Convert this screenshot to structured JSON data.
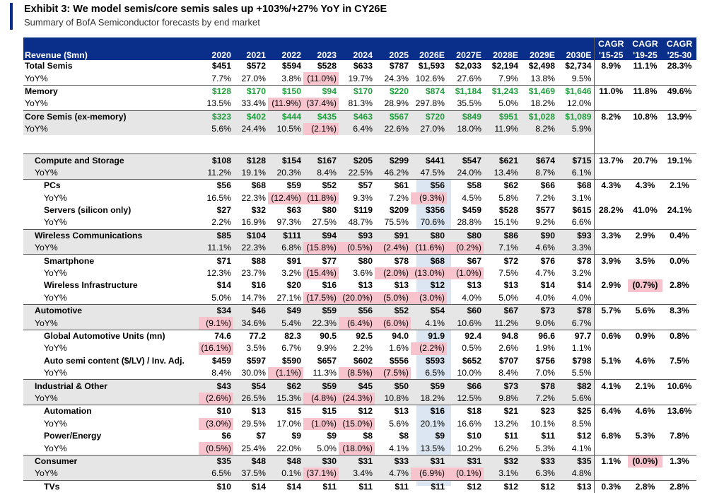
{
  "exhibit": {
    "title": "Exhibit 3: We model semis/core semis sales up +103%/+27% YoY in CY26E",
    "subtitle": "Summary of BofA Semiconductor forecasts by end market"
  },
  "colors": {
    "header_bg": "#0a2f8a",
    "negative_highlight": "#f7c3cc",
    "green_text": "#1e9e3c",
    "segment_gray": "#e6e6e6",
    "forecast_2026_band": "#dce6f2"
  },
  "header": {
    "label": "Revenue ($mn)",
    "years": [
      "2020",
      "2021",
      "2022",
      "2023",
      "2024",
      "2025",
      "2026E",
      "2027E",
      "2028E",
      "2029E",
      "2030E"
    ],
    "cagr_top": [
      "CAGR",
      "CAGR",
      "CAGR"
    ],
    "cagr_bottom": [
      "'15-25",
      "'19-25",
      "'25-30"
    ]
  },
  "rows": [
    {
      "label": "Total Semis",
      "type": "total",
      "values": [
        "$451",
        "$572",
        "$594",
        "$528",
        "$633",
        "$787",
        "$1,593",
        "$2,033",
        "$2,194",
        "$2,498",
        "$2,734"
      ],
      "cagr": [
        "8.9%",
        "11.1%",
        "28.3%"
      ]
    },
    {
      "label": "YoY%",
      "type": "yoy-top",
      "values": [
        "7.7%",
        "27.0%",
        "3.8%",
        "(11.0%)",
        "19.7%",
        "24.3%",
        "102.6%",
        "27.6%",
        "7.9%",
        "13.8%",
        "9.5%"
      ],
      "cagr": [
        "",
        "",
        ""
      ]
    },
    {
      "label": "Memory",
      "type": "total",
      "green": true,
      "values": [
        "$128",
        "$170",
        "$150",
        "$94",
        "$170",
        "$220",
        "$874",
        "$1,184",
        "$1,243",
        "$1,469",
        "$1,646"
      ],
      "cagr": [
        "11.0%",
        "11.8%",
        "49.6%"
      ]
    },
    {
      "label": "YoY%",
      "type": "yoy-top",
      "values": [
        "13.5%",
        "33.4%",
        "(11.9%)",
        "(37.4%)",
        "81.3%",
        "28.9%",
        "297.8%",
        "35.5%",
        "5.0%",
        "18.2%",
        "12.0%"
      ],
      "cagr": [
        "",
        "",
        ""
      ]
    },
    {
      "label": "Core Semis (ex-memory)",
      "type": "total-gray",
      "green": true,
      "values": [
        "$323",
        "$402",
        "$444",
        "$435",
        "$463",
        "$567",
        "$720",
        "$849",
        "$951",
        "$1,028",
        "$1,089"
      ],
      "cagr": [
        "8.2%",
        "10.8%",
        "13.9%"
      ]
    },
    {
      "label": "YoY%",
      "type": "yoy-gray",
      "values": [
        "5.6%",
        "24.4%",
        "10.5%",
        "(2.1%)",
        "6.4%",
        "22.6%",
        "27.0%",
        "18.0%",
        "11.9%",
        "8.2%",
        "5.9%"
      ],
      "cagr": [
        "",
        "",
        ""
      ]
    },
    {
      "label": "Compute and Storage",
      "type": "segment",
      "values": [
        "$108",
        "$128",
        "$154",
        "$167",
        "$205",
        "$299",
        "$441",
        "$547",
        "$621",
        "$674",
        "$715"
      ],
      "cagr": [
        "13.7%",
        "20.7%",
        "19.1%"
      ]
    },
    {
      "label": "YoY%",
      "type": "segment-yoy",
      "values": [
        "11.2%",
        "19.1%",
        "20.3%",
        "8.4%",
        "22.5%",
        "46.2%",
        "47.5%",
        "24.0%",
        "13.4%",
        "8.7%",
        "6.1%"
      ],
      "cagr": [
        "",
        "",
        ""
      ]
    },
    {
      "label": "PCs",
      "type": "sub",
      "values": [
        "$56",
        "$68",
        "$59",
        "$52",
        "$57",
        "$61",
        "$56",
        "$58",
        "$62",
        "$66",
        "$68"
      ],
      "cagr": [
        "4.3%",
        "4.3%",
        "2.1%"
      ]
    },
    {
      "label": "YoY%",
      "type": "sub-yoy",
      "values": [
        "16.5%",
        "22.3%",
        "(12.4%)",
        "(11.8%)",
        "9.3%",
        "7.2%",
        "(9.3%)",
        "4.5%",
        "5.8%",
        "7.2%",
        "3.1%"
      ],
      "cagr": [
        "",
        "",
        ""
      ]
    },
    {
      "label": "Servers (silicon only)",
      "type": "sub",
      "values": [
        "$27",
        "$32",
        "$63",
        "$80",
        "$119",
        "$209",
        "$356",
        "$459",
        "$528",
        "$577",
        "$615"
      ],
      "cagr": [
        "28.2%",
        "41.0%",
        "24.1%"
      ]
    },
    {
      "label": "YoY%",
      "type": "sub-yoy",
      "values": [
        "2.2%",
        "16.9%",
        "97.3%",
        "27.5%",
        "48.7%",
        "75.5%",
        "70.6%",
        "28.8%",
        "15.1%",
        "9.2%",
        "6.6%"
      ],
      "cagr": [
        "",
        "",
        ""
      ]
    },
    {
      "label": "Wireless Communications",
      "type": "segment",
      "values": [
        "$85",
        "$104",
        "$111",
        "$94",
        "$93",
        "$91",
        "$80",
        "$80",
        "$86",
        "$90",
        "$93"
      ],
      "cagr": [
        "3.3%",
        "2.9%",
        "0.4%"
      ]
    },
    {
      "label": "YoY%",
      "type": "segment-yoy",
      "values": [
        "11.1%",
        "22.3%",
        "6.8%",
        "(15.8%)",
        "(0.5%)",
        "(2.4%)",
        "(11.6%)",
        "(0.2%)",
        "7.1%",
        "4.6%",
        "3.3%"
      ],
      "cagr": [
        "",
        "",
        ""
      ]
    },
    {
      "label": "Smartphone",
      "type": "sub",
      "values": [
        "$71",
        "$88",
        "$91",
        "$77",
        "$80",
        "$78",
        "$68",
        "$67",
        "$72",
        "$76",
        "$78"
      ],
      "cagr": [
        "3.9%",
        "3.5%",
        "0.0%"
      ]
    },
    {
      "label": "YoY%",
      "type": "sub-yoy",
      "values": [
        "12.3%",
        "23.7%",
        "3.2%",
        "(15.4%)",
        "3.6%",
        "(2.0%)",
        "(13.0%)",
        "(1.0%)",
        "7.5%",
        "4.7%",
        "3.2%"
      ],
      "cagr": [
        "",
        "",
        ""
      ]
    },
    {
      "label": "Wireless Infrastructure",
      "type": "sub",
      "values": [
        "$14",
        "$16",
        "$20",
        "$16",
        "$13",
        "$13",
        "$12",
        "$13",
        "$13",
        "$14",
        "$14"
      ],
      "cagr": [
        "2.9%",
        "(0.7%)",
        "2.8%"
      ]
    },
    {
      "label": "YoY%",
      "type": "sub-yoy",
      "values": [
        "5.0%",
        "14.7%",
        "27.1%",
        "(17.5%)",
        "(20.0%)",
        "(5.0%)",
        "(3.0%)",
        "4.0%",
        "5.0%",
        "4.0%",
        "4.0%"
      ],
      "cagr": [
        "",
        "",
        ""
      ]
    },
    {
      "label": "Automotive",
      "type": "segment",
      "values": [
        "$34",
        "$46",
        "$49",
        "$59",
        "$56",
        "$52",
        "$54",
        "$60",
        "$67",
        "$73",
        "$78"
      ],
      "cagr": [
        "5.7%",
        "5.6%",
        "8.3%"
      ]
    },
    {
      "label": "YoY%",
      "type": "segment-yoy",
      "values": [
        "(9.1%)",
        "34.6%",
        "5.4%",
        "22.3%",
        "(6.4%)",
        "(6.0%)",
        "4.1%",
        "10.6%",
        "11.2%",
        "9.0%",
        "6.7%"
      ],
      "cagr": [
        "",
        "",
        ""
      ]
    },
    {
      "label": "Global Automotive Units (mn)",
      "type": "sub",
      "values": [
        "74.6",
        "77.2",
        "82.3",
        "90.5",
        "92.5",
        "94.0",
        "91.9",
        "92.4",
        "94.8",
        "96.6",
        "97.7"
      ],
      "cagr": [
        "0.6%",
        "0.9%",
        "0.8%"
      ]
    },
    {
      "label": "YoY%",
      "type": "sub-yoy",
      "values": [
        "(16.1%)",
        "3.5%",
        "6.7%",
        "9.9%",
        "2.2%",
        "1.6%",
        "(2.2%)",
        "0.5%",
        "2.6%",
        "1.9%",
        "1.1%"
      ],
      "cagr": [
        "",
        "",
        ""
      ]
    },
    {
      "label": "Auto semi content ($/LV) / Inv. Adj.",
      "type": "sub",
      "values": [
        "$459",
        "$597",
        "$590",
        "$657",
        "$602",
        "$556",
        "$593",
        "$652",
        "$707",
        "$756",
        "$798"
      ],
      "cagr": [
        "5.1%",
        "4.6%",
        "7.5%"
      ]
    },
    {
      "label": "YoY%",
      "type": "sub-yoy",
      "values": [
        "8.4%",
        "30.0%",
        "(1.1%)",
        "11.3%",
        "(8.5%)",
        "(7.5%)",
        "6.5%",
        "10.0%",
        "8.4%",
        "7.0%",
        "5.5%"
      ],
      "cagr": [
        "",
        "",
        ""
      ]
    },
    {
      "label": "Industrial & Other",
      "type": "segment",
      "values": [
        "$43",
        "$54",
        "$62",
        "$59",
        "$45",
        "$50",
        "$59",
        "$66",
        "$73",
        "$78",
        "$82"
      ],
      "cagr": [
        "4.1%",
        "2.1%",
        "10.6%"
      ]
    },
    {
      "label": "YoY%",
      "type": "segment-yoy",
      "values": [
        "(2.6%)",
        "26.5%",
        "15.3%",
        "(4.8%)",
        "(24.3%)",
        "10.8%",
        "18.2%",
        "12.5%",
        "9.8%",
        "7.2%",
        "5.6%"
      ],
      "cagr": [
        "",
        "",
        ""
      ]
    },
    {
      "label": "Automation",
      "type": "sub",
      "values": [
        "$10",
        "$13",
        "$15",
        "$15",
        "$12",
        "$13",
        "$16",
        "$18",
        "$21",
        "$23",
        "$25"
      ],
      "cagr": [
        "6.4%",
        "4.6%",
        "13.6%"
      ]
    },
    {
      "label": "YoY%",
      "type": "sub-yoy",
      "values": [
        "(3.0%)",
        "29.5%",
        "17.0%",
        "(1.0%)",
        "(15.0%)",
        "5.6%",
        "20.1%",
        "16.6%",
        "13.2%",
        "10.1%",
        "8.5%"
      ],
      "cagr": [
        "",
        "",
        ""
      ]
    },
    {
      "label": "Power/Energy",
      "type": "sub",
      "values": [
        "$6",
        "$7",
        "$9",
        "$9",
        "$8",
        "$8",
        "$9",
        "$10",
        "$11",
        "$11",
        "$12"
      ],
      "cagr": [
        "6.8%",
        "5.3%",
        "7.8%"
      ]
    },
    {
      "label": "YoY%",
      "type": "sub-yoy",
      "values": [
        "(0.5%)",
        "25.4%",
        "22.0%",
        "5.0%",
        "(18.0%)",
        "4.1%",
        "13.5%",
        "10.2%",
        "6.2%",
        "5.3%",
        "4.1%"
      ],
      "cagr": [
        "",
        "",
        ""
      ]
    },
    {
      "label": "Consumer",
      "type": "segment",
      "values": [
        "$35",
        "$48",
        "$48",
        "$30",
        "$31",
        "$33",
        "$31",
        "$31",
        "$32",
        "$33",
        "$35"
      ],
      "cagr": [
        "1.1%",
        "(0.0%)",
        "1.3%"
      ]
    },
    {
      "label": "YoY%",
      "type": "segment-yoy",
      "values": [
        "6.5%",
        "37.5%",
        "0.1%",
        "(37.1%)",
        "3.4%",
        "4.7%",
        "(6.9%)",
        "(0.1%)",
        "3.1%",
        "6.3%",
        "4.8%"
      ],
      "cagr": [
        "",
        "",
        ""
      ]
    },
    {
      "label": "TVs",
      "type": "sub",
      "values": [
        "$10",
        "$14",
        "$14",
        "$11",
        "$11",
        "$11",
        "$11",
        "$12",
        "$12",
        "$12",
        "$13"
      ],
      "cagr": [
        "0.3%",
        "2.8%",
        "2.8%"
      ]
    }
  ]
}
